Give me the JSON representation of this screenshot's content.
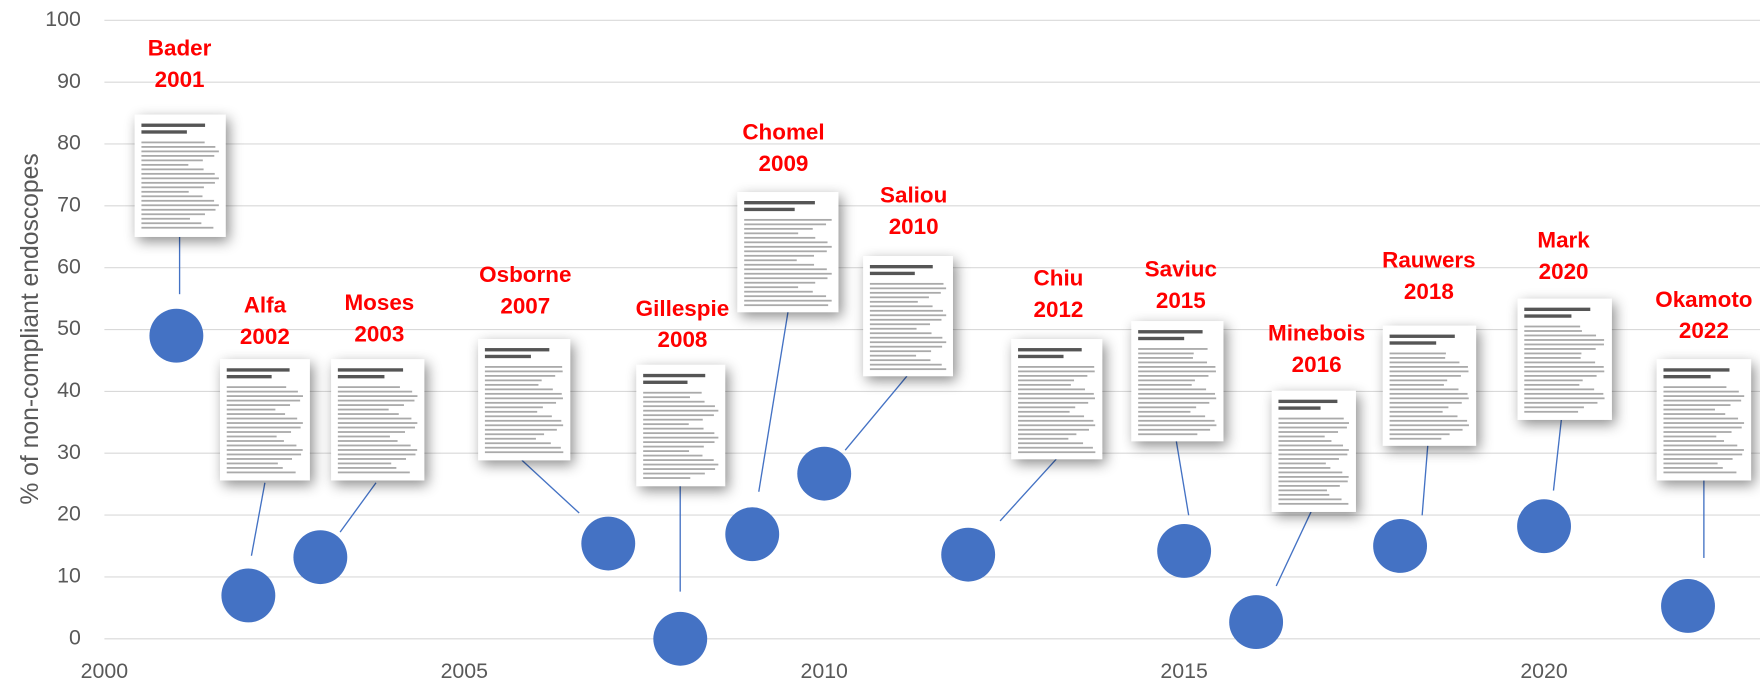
{
  "chart_data": {
    "type": "scatter",
    "y_label": "% of non-compliant endoscopes",
    "xlim": [
      2000,
      2023
    ],
    "ylim": [
      0,
      100
    ],
    "xticks": [
      2000,
      2005,
      2010,
      2015,
      2020
    ],
    "yticks": [
      0,
      10,
      20,
      30,
      40,
      50,
      60,
      70,
      80,
      90,
      100
    ],
    "grid": true,
    "color": "#4472c4",
    "label_color": "#ff0000",
    "points": [
      {
        "name": "Bader",
        "x": 2001,
        "y": 49
      },
      {
        "name": "Alfa",
        "x": 2002,
        "y": 7
      },
      {
        "name": "Moses",
        "x": 2003,
        "y": 13.2
      },
      {
        "name": "Osborne",
        "x": 2007,
        "y": 15.4
      },
      {
        "name": "Gillespie",
        "x": 2008,
        "y": 0
      },
      {
        "name": "Chomel",
        "x": 2009,
        "y": 16.9
      },
      {
        "name": "Saliou",
        "x": 2010,
        "y": 26.7
      },
      {
        "name": "Chiu",
        "x": 2012,
        "y": 13.6
      },
      {
        "name": "Saviuc",
        "x": 2015,
        "y": 14.2
      },
      {
        "name": "Minebois",
        "x": 2016,
        "y": 2.7
      },
      {
        "name": "Rauwers",
        "x": 2018,
        "y": 15
      },
      {
        "name": "Mark",
        "x": 2020,
        "y": 18.2
      },
      {
        "name": "Okamoto",
        "x": 2022,
        "y": 5.3
      }
    ]
  }
}
